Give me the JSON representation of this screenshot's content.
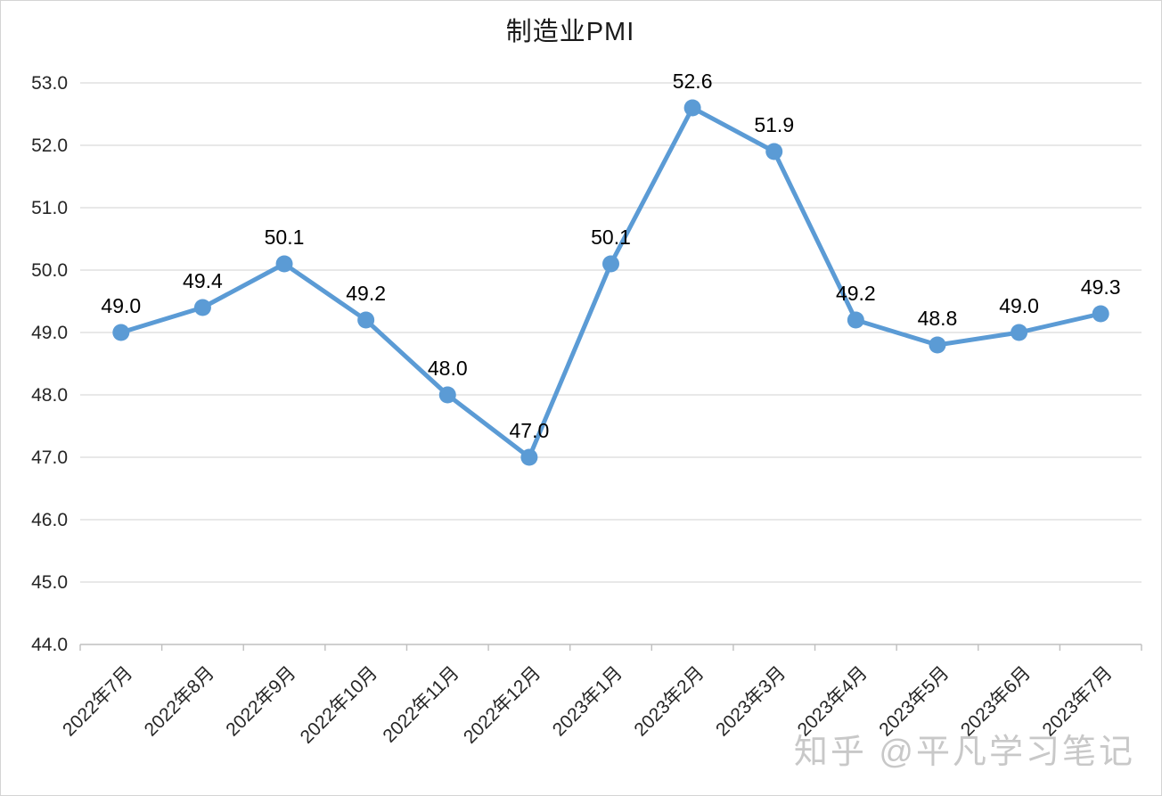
{
  "page": {
    "background": "#ffffff",
    "border_color": "#d4d4d4"
  },
  "chart_data": {
    "type": "line",
    "title": "制造业PMI",
    "categories": [
      "2022年7月",
      "2022年8月",
      "2022年9月",
      "2022年10月",
      "2022年11月",
      "2022年12月",
      "2023年1月",
      "2023年2月",
      "2023年3月",
      "2023年4月",
      "2023年5月",
      "2023年6月",
      "2023年7月"
    ],
    "values": [
      49.0,
      49.4,
      50.1,
      49.2,
      48.0,
      47.0,
      50.1,
      52.6,
      51.9,
      49.2,
      48.8,
      49.0,
      49.3
    ],
    "data_labels": [
      "49.0",
      "49.4",
      "50.1",
      "49.2",
      "48.0",
      "47.0",
      "50.1",
      "52.6",
      "51.9",
      "49.2",
      "48.8",
      "49.0",
      "49.3"
    ],
    "xlabel": "",
    "ylabel": "",
    "ylim": [
      44.0,
      53.0
    ],
    "ytick_step": 1.0,
    "ytick_labels": [
      "44.0",
      "45.0",
      "46.0",
      "47.0",
      "48.0",
      "49.0",
      "50.0",
      "51.0",
      "52.0",
      "53.0"
    ],
    "grid": "horizontal",
    "legend_position": "none",
    "line_color": "#5B9BD5",
    "marker_color": "#5B9BD5",
    "gridline_color": "#D9D9D9",
    "axis_line_color": "#BFBFBF",
    "tick_label_color": "#262626",
    "data_label_color": "#000000"
  },
  "watermark": {
    "text": "知乎 @平凡学习笔记",
    "color": "#c8c8c8"
  }
}
